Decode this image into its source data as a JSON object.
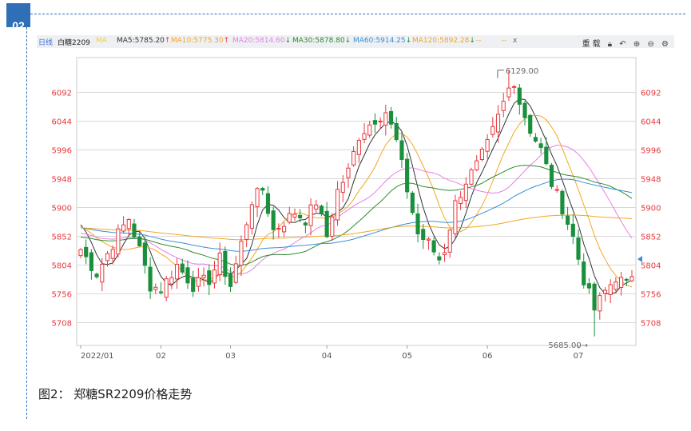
{
  "section_badge": "02",
  "toolbar": {
    "period": "日线",
    "symbol": "白糖2209",
    "ma_label": "MA",
    "indicators": [
      {
        "text": "MA5:5785.20",
        "arrow": "↑",
        "color": "#333333"
      },
      {
        "text": "MA10:5775.30",
        "arrow": "↑",
        "color": "#f5a623"
      },
      {
        "text": "MA20:5814.60",
        "arrow": "↓",
        "color": "#e87ee8"
      },
      {
        "text": "MA30:5878.80",
        "arrow": "↓",
        "color": "#2e8b2e"
      },
      {
        "text": "MA60:5914.25",
        "arrow": "↓",
        "color": "#3b8fd6"
      },
      {
        "text": "MA120:5892.28",
        "arrow": "↓",
        "color": "#f5a623"
      }
    ],
    "dashes": "--",
    "close": "x",
    "reset_label": "重载"
  },
  "caption": "图2： 郑糖SR2209价格走势",
  "chart_data": {
    "type": "candlestick",
    "y_ticks": [
      6092,
      6044,
      5996,
      5948,
      5900,
      5852,
      5804,
      5756,
      5708
    ],
    "ylim": [
      5670,
      6150
    ],
    "x_tick_labels": [
      {
        "label": "2022/01",
        "index": 0
      },
      {
        "label": "02",
        "index": 15
      },
      {
        "label": "03",
        "index": 28
      },
      {
        "label": "04",
        "index": 46
      },
      {
        "label": "05",
        "index": 61
      },
      {
        "label": "06",
        "index": 76
      },
      {
        "label": "07",
        "index": 93
      }
    ],
    "annotations": [
      {
        "text": "6129.00",
        "index": 80,
        "value": 6129
      },
      {
        "text": "5685.00",
        "index": 96,
        "value": 5685
      }
    ],
    "colors": {
      "up": "#e8373c",
      "down": "#1a8f3c",
      "grid": "#d8d8d8",
      "axis_text": "#e8373c"
    },
    "key_points": [
      [
        0,
        5830
      ],
      [
        3,
        5790
      ],
      [
        7,
        5856
      ],
      [
        9,
        5882
      ],
      [
        11,
        5830
      ],
      [
        13,
        5770
      ],
      [
        15,
        5764
      ],
      [
        18,
        5804
      ],
      [
        21,
        5770
      ],
      [
        24,
        5780
      ],
      [
        26,
        5814
      ],
      [
        28,
        5770
      ],
      [
        30,
        5840
      ],
      [
        32,
        5912
      ],
      [
        34,
        5930
      ],
      [
        36,
        5862
      ],
      [
        38,
        5876
      ],
      [
        40,
        5892
      ],
      [
        42,
        5880
      ],
      [
        44,
        5910
      ],
      [
        46,
        5852
      ],
      [
        48,
        5928
      ],
      [
        50,
        5960
      ],
      [
        52,
        6020
      ],
      [
        55,
        6048
      ],
      [
        57,
        6060
      ],
      [
        59,
        6010
      ],
      [
        61,
        5930
      ],
      [
        63,
        5856
      ],
      [
        65,
        5840
      ],
      [
        67,
        5814
      ],
      [
        68,
        5830
      ],
      [
        70,
        5906
      ],
      [
        72,
        5944
      ],
      [
        74,
        5970
      ],
      [
        76,
        6004
      ],
      [
        78,
        6050
      ],
      [
        80,
        6098
      ],
      [
        81,
        6112
      ],
      [
        82,
        6076
      ],
      [
        84,
        6030
      ],
      [
        86,
        5996
      ],
      [
        88,
        5940
      ],
      [
        90,
        5900
      ],
      [
        92,
        5850
      ],
      [
        94,
        5780
      ],
      [
        96,
        5730
      ],
      [
        98,
        5760
      ],
      [
        100,
        5784
      ],
      [
        102,
        5770
      ],
      [
        103,
        5790
      ]
    ],
    "series": [
      {
        "name": "MA5",
        "color": "#333333",
        "period": 5
      },
      {
        "name": "MA10",
        "color": "#f5a623",
        "period": 10
      },
      {
        "name": "MA20",
        "color": "#e87ee8",
        "period": 20
      },
      {
        "name": "MA30",
        "color": "#2e8b2e",
        "period": 30
      },
      {
        "name": "MA60",
        "color": "#3b8fd6",
        "period": 60
      },
      {
        "name": "MA120",
        "color": "#f5a623",
        "period": 120
      }
    ],
    "grid": true,
    "legend": "top"
  }
}
